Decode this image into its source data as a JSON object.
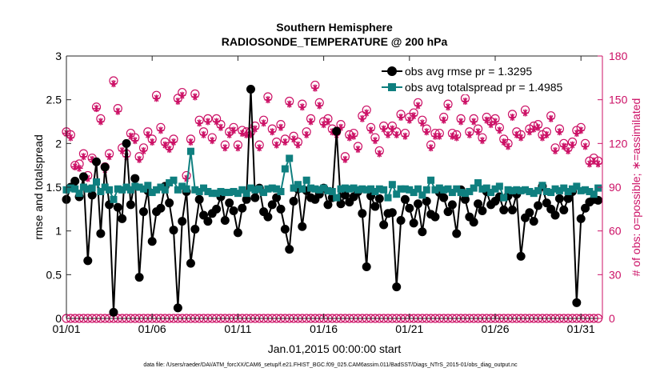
{
  "chart_data": {
    "type": "line",
    "title_line1": "Southern Hemisphere",
    "title_line2": "RADIOSONDE_TEMPERATURE @ 200 hPa",
    "xlabel": "Jan.01,2015 00:00:00 start",
    "ylabel_left": "rmse and totalspread",
    "ylabel_right": "# of obs: o=possible; ∗=assimilated",
    "footnote": "data file: /Users/raeder/DAI/ATM_forcXX/CAM6_setup/f.e21.FHIST_BGC.f09_025.CAM6assim.011/BadSST/Diags_NTrS_2015-01/obs_diag_output.nc",
    "xlim": [
      1,
      32.25
    ],
    "ylim_left": [
      0,
      3
    ],
    "ylim_right": [
      0,
      180
    ],
    "xticks": [
      1,
      6,
      11,
      16,
      21,
      26,
      31
    ],
    "xtick_labels": [
      "01/01",
      "01/06",
      "01/11",
      "01/16",
      "01/21",
      "01/26",
      "01/31"
    ],
    "yticks_left": [
      0,
      0.5,
      1,
      1.5,
      2,
      2.5,
      3
    ],
    "ytick_labels_left": [
      "0",
      "0.5",
      "1",
      "1.5",
      "2",
      "2.5",
      "3"
    ],
    "yticks_right": [
      0,
      30,
      60,
      90,
      120,
      150,
      180
    ],
    "ytick_labels_right": [
      "0",
      "30",
      "60",
      "90",
      "120",
      "150",
      "180"
    ],
    "legend": {
      "placement": "top-right",
      "entries": [
        "obs avg rmse pr = 1.3295",
        "obs avg totalspread pr = 1.4985"
      ]
    },
    "x": [
      1.0,
      1.25,
      1.5,
      1.75,
      2.0,
      2.25,
      2.5,
      2.75,
      3.0,
      3.25,
      3.5,
      3.75,
      4.0,
      4.25,
      4.5,
      4.75,
      5.0,
      5.25,
      5.5,
      5.75,
      6.0,
      6.25,
      6.5,
      6.75,
      7.0,
      7.25,
      7.5,
      7.75,
      8.0,
      8.25,
      8.5,
      8.75,
      9.0,
      9.25,
      9.5,
      9.75,
      10.0,
      10.25,
      10.5,
      10.75,
      11.0,
      11.25,
      11.5,
      11.75,
      12.0,
      12.25,
      12.5,
      12.75,
      13.0,
      13.25,
      13.5,
      13.75,
      14.0,
      14.25,
      14.5,
      14.75,
      15.0,
      15.25,
      15.5,
      15.75,
      16.0,
      16.25,
      16.5,
      16.75,
      17.0,
      17.25,
      17.5,
      17.75,
      18.0,
      18.25,
      18.5,
      18.75,
      19.0,
      19.25,
      19.5,
      19.75,
      20.0,
      20.25,
      20.5,
      20.75,
      21.0,
      21.25,
      21.5,
      21.75,
      22.0,
      22.25,
      22.5,
      22.75,
      23.0,
      23.25,
      23.5,
      23.75,
      24.0,
      24.25,
      24.5,
      24.75,
      25.0,
      25.25,
      25.5,
      25.75,
      26.0,
      26.25,
      26.5,
      26.75,
      27.0,
      27.25,
      27.5,
      27.75,
      28.0,
      28.25,
      28.5,
      28.75,
      29.0,
      29.25,
      29.5,
      29.75,
      30.0,
      30.25,
      30.5,
      30.75,
      31.0,
      31.25,
      31.5,
      31.75,
      32.0
    ],
    "series": [
      {
        "name": "obs avg rmse pr = 1.3295",
        "color": "#000000",
        "marker": "circle",
        "values": [
          1.36,
          1.5,
          1.57,
          1.39,
          1.62,
          0.66,
          1.41,
          1.79,
          0.97,
          1.73,
          1.3,
          0.07,
          1.27,
          1.14,
          2.0,
          1.3,
          1.6,
          0.47,
          1.22,
          1.46,
          0.88,
          1.22,
          1.26,
          1.51,
          1.32,
          1.01,
          0.12,
          1.11,
          1.45,
          0.63,
          1.02,
          1.36,
          1.18,
          1.11,
          1.2,
          1.25,
          1.39,
          1.12,
          1.32,
          1.23,
          0.98,
          1.26,
          1.36,
          2.62,
          1.38,
          1.49,
          1.22,
          1.16,
          1.3,
          1.38,
          1.25,
          1.02,
          0.79,
          1.34,
          1.48,
          1.05,
          1.46,
          1.38,
          1.36,
          1.42,
          1.49,
          1.3,
          1.38,
          2.14,
          1.31,
          1.41,
          1.33,
          1.39,
          1.45,
          1.2,
          0.59,
          1.4,
          1.28,
          1.37,
          1.07,
          1.2,
          1.21,
          0.36,
          1.12,
          1.36,
          1.26,
          1.09,
          1.31,
          0.99,
          1.34,
          1.19,
          1.16,
          1.44,
          1.38,
          1.22,
          1.3,
          0.97,
          1.47,
          1.36,
          1.16,
          1.1,
          1.31,
          1.23,
          1.45,
          1.3,
          1.34,
          1.39,
          1.24,
          1.4,
          1.24,
          1.42,
          0.71,
          1.15,
          1.21,
          1.11,
          1.29,
          1.51,
          1.32,
          1.25,
          1.18,
          1.37,
          1.24,
          1.37,
          1.45,
          0.18,
          1.14,
          1.26,
          1.33,
          1.36,
          1.35
        ]
      },
      {
        "name": "obs avg totalspread pr = 1.4985",
        "color": "#0f7f7f",
        "marker": "square",
        "values": [
          1.47,
          1.49,
          1.48,
          1.43,
          1.5,
          1.48,
          1.49,
          1.56,
          1.45,
          1.5,
          1.47,
          1.36,
          1.48,
          1.47,
          1.5,
          1.47,
          1.51,
          1.5,
          1.48,
          1.52,
          1.44,
          1.47,
          1.5,
          1.47,
          1.55,
          1.58,
          1.47,
          1.51,
          1.48,
          1.91,
          1.47,
          1.45,
          1.49,
          1.45,
          1.43,
          1.43,
          1.45,
          1.44,
          1.44,
          1.45,
          1.43,
          1.47,
          1.43,
          1.49,
          1.47,
          1.48,
          1.44,
          1.48,
          1.49,
          1.48,
          1.45,
          1.71,
          1.83,
          1.49,
          1.53,
          1.48,
          1.58,
          1.49,
          1.48,
          1.47,
          1.49,
          1.46,
          1.45,
          1.38,
          1.48,
          1.49,
          1.48,
          1.49,
          1.47,
          1.48,
          1.47,
          1.48,
          1.45,
          1.48,
          1.47,
          1.38,
          1.53,
          1.42,
          1.48,
          1.48,
          1.47,
          1.44,
          1.48,
          1.41,
          1.47,
          1.58,
          1.47,
          1.49,
          1.47,
          1.48,
          1.44,
          1.48,
          1.44,
          1.43,
          1.45,
          1.49,
          1.55,
          1.48,
          1.49,
          1.44,
          1.48,
          1.51,
          1.38,
          1.47,
          1.46,
          1.47,
          1.46,
          1.47,
          1.45,
          1.43,
          1.46,
          1.52,
          1.45,
          1.44,
          1.48,
          1.46,
          1.49,
          1.45,
          1.48,
          1.51,
          1.46,
          1.47,
          1.45,
          1.42,
          1.49
        ]
      },
      {
        "name": "# of obs possible",
        "axis": "right",
        "color": "#cc1166",
        "marker": "open-circle",
        "values": [
          128,
          126,
          105,
          106,
          113,
          98,
          110,
          145,
          137,
          104,
          113,
          163,
          144,
          117,
          113,
          127,
          124,
          111,
          117,
          128,
          123,
          153,
          131,
          121,
          118,
          123,
          151,
          155,
          98,
          123,
          154,
          136,
          128,
          137,
          124,
          137,
          133,
          119,
          128,
          131,
          119,
          129,
          128,
          128,
          132,
          119,
          136,
          152,
          130,
          121,
          133,
          123,
          149,
          125,
          121,
          147,
          128,
          137,
          160,
          148,
          135,
          137,
          130,
          128,
          133,
          111,
          126,
          127,
          118,
          139,
          143,
          131,
          124,
          115,
          132,
          128,
          132,
          128,
          140,
          127,
          138,
          141,
          148,
          136,
          130,
          119,
          127,
          127,
          138,
          147,
          127,
          126,
          137,
          151,
          128,
          137,
          130,
          124,
          138,
          135,
          137,
          131,
          123,
          120,
          140,
          128,
          126,
          143,
          130,
          132,
          133,
          126,
          128,
          139,
          117,
          130,
          120,
          117,
          121,
          129,
          131,
          120,
          108,
          110,
          108
        ]
      },
      {
        "name": "# of obs assimilated",
        "axis": "right",
        "color": "#cc1166",
        "marker": "asterisk",
        "values": [
          127,
          124,
          104,
          103,
          111,
          96,
          109,
          144,
          135,
          102,
          111,
          161,
          142,
          115,
          111,
          125,
          122,
          109,
          115,
          126,
          121,
          151,
          129,
          119,
          116,
          121,
          149,
          153,
          96,
          121,
          152,
          134,
          126,
          135,
          122,
          135,
          131,
          117,
          126,
          129,
          117,
          127,
          126,
          126,
          130,
          117,
          134,
          150,
          128,
          119,
          131,
          121,
          147,
          123,
          119,
          145,
          126,
          135,
          158,
          146,
          133,
          135,
          128,
          126,
          131,
          109,
          124,
          125,
          116,
          137,
          141,
          129,
          122,
          113,
          130,
          126,
          130,
          126,
          138,
          125,
          136,
          139,
          146,
          134,
          128,
          117,
          125,
          125,
          136,
          145,
          125,
          124,
          135,
          149,
          126,
          135,
          128,
          122,
          136,
          133,
          135,
          129,
          121,
          118,
          138,
          126,
          124,
          141,
          128,
          130,
          131,
          124,
          126,
          137,
          115,
          128,
          118,
          115,
          119,
          127,
          129,
          118,
          106,
          108,
          106
        ]
      }
    ]
  }
}
